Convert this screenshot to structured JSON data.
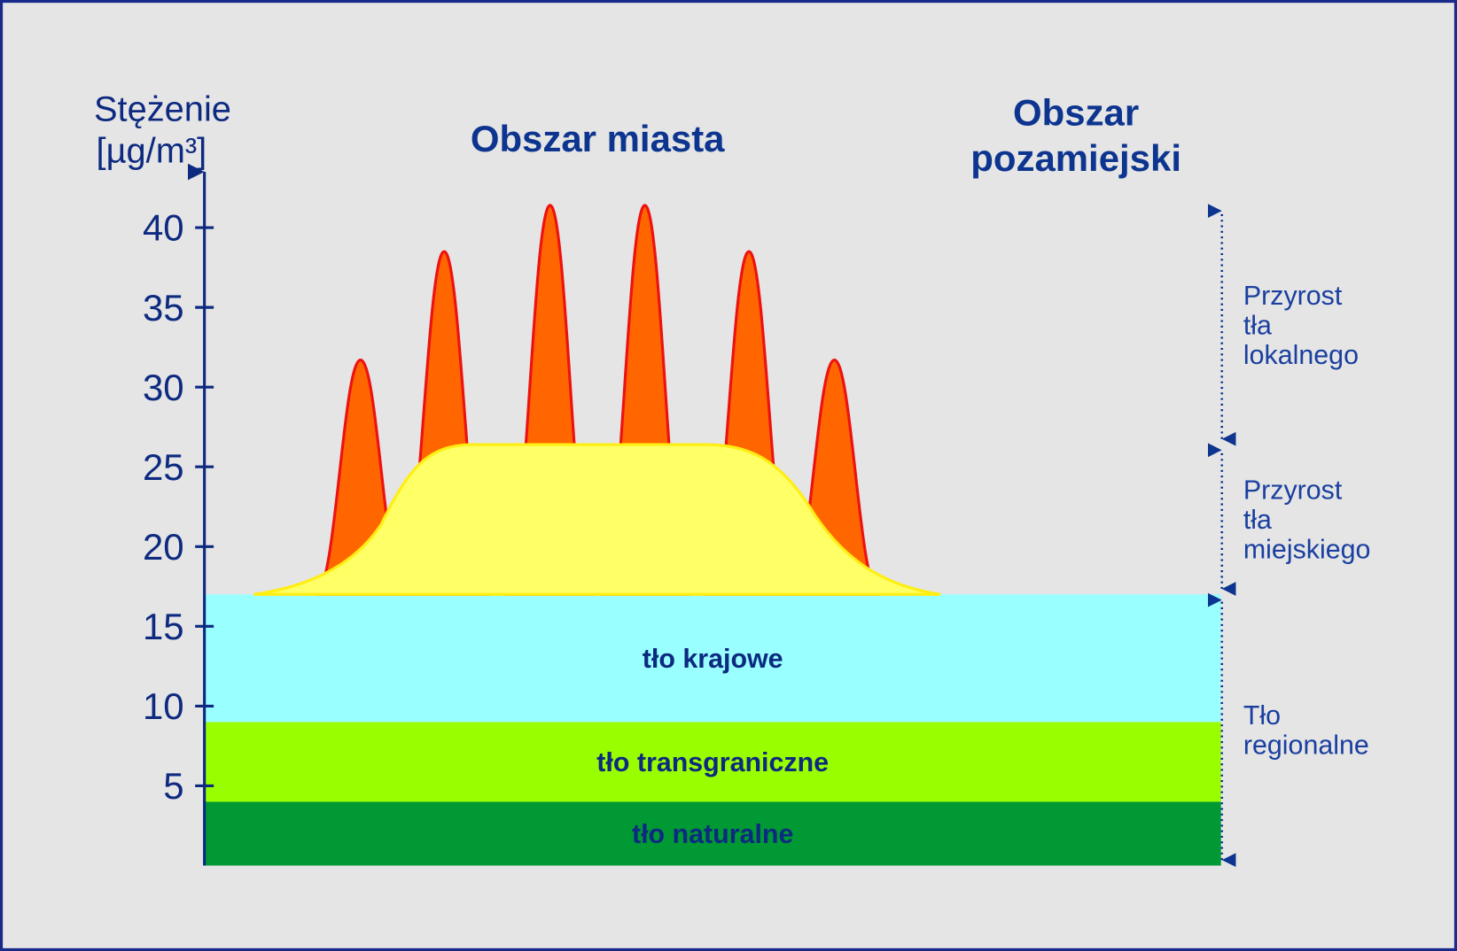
{
  "chart_data": {
    "type": "layers",
    "y_label": [
      "Stężenie",
      "[µg/m³]"
    ],
    "ylim": [
      0,
      43.5
    ],
    "yticks": [
      5,
      10,
      15,
      20,
      25,
      30,
      35,
      40
    ],
    "region_labels": {
      "city": "Obszar miasta",
      "rural": [
        "Obszar",
        "pozamiejski"
      ]
    },
    "layers": [
      {
        "name": "tło naturalne",
        "value": 4,
        "color": "#009933"
      },
      {
        "name": "tło transgraniczne",
        "value": 5,
        "color": "#99ff00"
      },
      {
        "name": "tło krajowe",
        "value": 8,
        "color": "#99ffff"
      }
    ],
    "urban_plateau": {
      "value": 26.4,
      "color": "#ffff66",
      "edge": "#ffee11"
    },
    "peaks": {
      "values": [
        31.7,
        38.5,
        41.4,
        41.4,
        38.5,
        31.7
      ],
      "color": "#ff6600",
      "edge": "#ee1111"
    },
    "annotations": [
      [
        "Przyrost",
        "tła",
        "lokalnego"
      ],
      [
        "Przyrost",
        "tła",
        "miejskiego"
      ],
      [
        "Tło",
        "regionalne"
      ]
    ]
  }
}
